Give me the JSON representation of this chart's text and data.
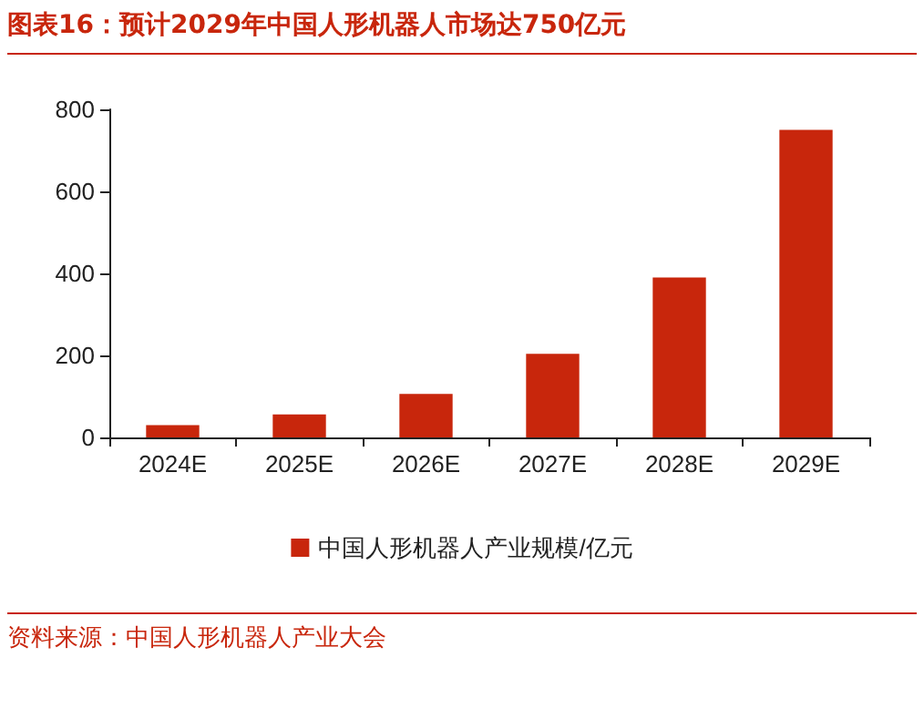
{
  "chart_data": {
    "type": "bar",
    "title": "图表16：预计2029年中国人形机器人市场达750亿元",
    "categories": [
      "2024E",
      "2025E",
      "2026E",
      "2027E",
      "2028E",
      "2029E"
    ],
    "series": [
      {
        "name": "中国人形机器人产业规模/亿元",
        "color": "#c8260c",
        "values": [
          30,
          56,
          106,
          204,
          390,
          750
        ]
      }
    ],
    "ylim": [
      0,
      800
    ],
    "yticks": [
      0,
      200,
      400,
      600,
      800
    ],
    "grid": false,
    "legend": "bottom",
    "annotations": [
      "资料来源：中国人形机器人产业大会"
    ]
  }
}
